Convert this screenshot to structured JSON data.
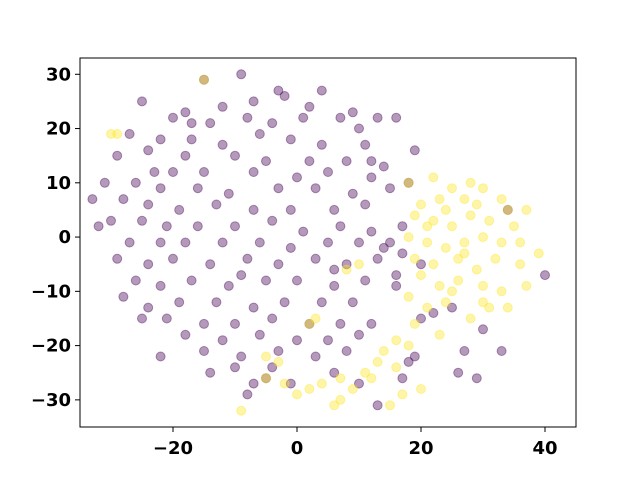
{
  "chart_data": {
    "type": "scatter",
    "title": "",
    "xlabel": "",
    "ylabel": "",
    "xlim": [
      -35,
      45
    ],
    "ylim": [
      -35,
      33
    ],
    "xticks": [
      -20,
      0,
      20,
      40
    ],
    "yticks": [
      -30,
      -20,
      -10,
      0,
      10,
      20,
      30
    ],
    "xtick_labels": [
      "−20",
      "0",
      "20",
      "40"
    ],
    "ytick_labels": [
      "−30",
      "−20",
      "−10",
      "0",
      "10",
      "20",
      "30"
    ],
    "grid": false,
    "legend": false,
    "marker_opacity": 0.4,
    "series": [
      {
        "color": "#440154",
        "points": [
          [
            -9,
            30
          ],
          [
            -15,
            29
          ],
          [
            -3,
            27
          ],
          [
            -2,
            26
          ],
          [
            4,
            27
          ],
          [
            -7,
            25
          ],
          [
            -25,
            25
          ],
          [
            -12,
            24
          ],
          [
            -18,
            23
          ],
          [
            -20,
            22
          ],
          [
            -14,
            21
          ],
          [
            -8,
            22
          ],
          [
            -4,
            21
          ],
          [
            1,
            22
          ],
          [
            7,
            22
          ],
          [
            9,
            23
          ],
          [
            13,
            22
          ],
          [
            16,
            22
          ],
          [
            10,
            20
          ],
          [
            -6,
            19
          ],
          [
            -27,
            19
          ],
          [
            -22,
            18
          ],
          [
            -17,
            18
          ],
          [
            -12,
            17
          ],
          [
            -1,
            18
          ],
          [
            4,
            17
          ],
          [
            11,
            17
          ],
          [
            -29,
            15
          ],
          [
            -24,
            16
          ],
          [
            -18,
            15
          ],
          [
            -10,
            15
          ],
          [
            -5,
            14
          ],
          [
            2,
            14
          ],
          [
            8,
            14
          ],
          [
            14,
            13
          ],
          [
            19,
            16
          ],
          [
            -20,
            12
          ],
          [
            -15,
            12
          ],
          [
            -7,
            12
          ],
          [
            0,
            11
          ],
          [
            5,
            12
          ],
          [
            12,
            11
          ],
          [
            -31,
            10
          ],
          [
            -26,
            10
          ],
          [
            -22,
            9
          ],
          [
            -16,
            9
          ],
          [
            -11,
            8
          ],
          [
            -3,
            9
          ],
          [
            3,
            9
          ],
          [
            9,
            8
          ],
          [
            15,
            9
          ],
          [
            -28,
            7
          ],
          [
            -24,
            6
          ],
          [
            -19,
            5
          ],
          [
            -13,
            6
          ],
          [
            -7,
            5
          ],
          [
            -1,
            5
          ],
          [
            6,
            5
          ],
          [
            11,
            6
          ],
          [
            -33,
            7
          ],
          [
            -30,
            3
          ],
          [
            -25,
            3
          ],
          [
            -21,
            2
          ],
          [
            -16,
            2
          ],
          [
            -10,
            2
          ],
          [
            -4,
            3
          ],
          [
            1,
            1
          ],
          [
            7,
            2
          ],
          [
            12,
            1
          ],
          [
            17,
            2
          ],
          [
            -32,
            2
          ],
          [
            -27,
            -1
          ],
          [
            -22,
            -1
          ],
          [
            -18,
            -1
          ],
          [
            -12,
            -1
          ],
          [
            -6,
            -1
          ],
          [
            -1,
            -2
          ],
          [
            5,
            -1
          ],
          [
            10,
            -1
          ],
          [
            15,
            -1
          ],
          [
            -29,
            -4
          ],
          [
            -24,
            -5
          ],
          [
            -20,
            -4
          ],
          [
            -14,
            -5
          ],
          [
            -8,
            -4
          ],
          [
            -3,
            -5
          ],
          [
            3,
            -4
          ],
          [
            8,
            -5
          ],
          [
            13,
            -4
          ],
          [
            -26,
            -8
          ],
          [
            -22,
            -9
          ],
          [
            -17,
            -8
          ],
          [
            -11,
            -9
          ],
          [
            -5,
            -8
          ],
          [
            0,
            -8
          ],
          [
            6,
            -9
          ],
          [
            11,
            -8
          ],
          [
            16,
            -7
          ],
          [
            -28,
            -11
          ],
          [
            -24,
            -13
          ],
          [
            -19,
            -12
          ],
          [
            -13,
            -12
          ],
          [
            -7,
            -13
          ],
          [
            -2,
            -12
          ],
          [
            4,
            -12
          ],
          [
            9,
            -12
          ],
          [
            -21,
            -15
          ],
          [
            -15,
            -16
          ],
          [
            -10,
            -16
          ],
          [
            -4,
            -15
          ],
          [
            2,
            -16
          ],
          [
            7,
            -16
          ],
          [
            12,
            -16
          ],
          [
            -25,
            -15
          ],
          [
            -18,
            -18
          ],
          [
            -12,
            -19
          ],
          [
            -6,
            -18
          ],
          [
            0,
            -19
          ],
          [
            5,
            -19
          ],
          [
            10,
            -18
          ],
          [
            -22,
            -22
          ],
          [
            -15,
            -21
          ],
          [
            -9,
            -22
          ],
          [
            -3,
            -21
          ],
          [
            3,
            -22
          ],
          [
            8,
            -21
          ],
          [
            -10,
            -24
          ],
          [
            -5,
            -26
          ],
          [
            -7,
            -27
          ],
          [
            -4,
            -24
          ],
          [
            6,
            -25
          ],
          [
            10,
            -27
          ],
          [
            13,
            -31
          ],
          [
            17,
            -26
          ],
          [
            19,
            -22
          ],
          [
            20,
            -15
          ],
          [
            22,
            -14
          ],
          [
            25,
            -13
          ],
          [
            27,
            -21
          ],
          [
            26,
            -25
          ],
          [
            29,
            -26
          ],
          [
            33,
            -21
          ],
          [
            30,
            -17
          ],
          [
            34,
            5
          ],
          [
            40,
            -7
          ],
          [
            18,
            -23
          ],
          [
            -8,
            -29
          ],
          [
            16,
            -9
          ],
          [
            17,
            -3
          ],
          [
            18,
            10
          ],
          [
            14,
            -2
          ],
          [
            6,
            -6
          ],
          [
            -9,
            -7
          ],
          [
            -23,
            12
          ],
          [
            -17,
            21
          ],
          [
            2,
            24
          ],
          [
            12,
            14
          ],
          [
            -1,
            -27
          ],
          [
            -14,
            -25
          ],
          [
            20,
            -5
          ]
        ]
      },
      {
        "color": "#fde725",
        "points": [
          [
            -15,
            29
          ],
          [
            -30,
            19
          ],
          [
            -29,
            19
          ],
          [
            18,
            10
          ],
          [
            22,
            11
          ],
          [
            25,
            9
          ],
          [
            28,
            10
          ],
          [
            30,
            9
          ],
          [
            27,
            7
          ],
          [
            29,
            6
          ],
          [
            23,
            7
          ],
          [
            20,
            6
          ],
          [
            19,
            4
          ],
          [
            22,
            3
          ],
          [
            25,
            2
          ],
          [
            28,
            4
          ],
          [
            31,
            3
          ],
          [
            34,
            5
          ],
          [
            37,
            5
          ],
          [
            35,
            2
          ],
          [
            18,
            0
          ],
          [
            21,
            -1
          ],
          [
            24,
            -2
          ],
          [
            27,
            -1
          ],
          [
            30,
            0
          ],
          [
            33,
            -1
          ],
          [
            36,
            -1
          ],
          [
            19,
            -4
          ],
          [
            22,
            -5
          ],
          [
            26,
            -4
          ],
          [
            29,
            -6
          ],
          [
            32,
            -4
          ],
          [
            36,
            -5
          ],
          [
            39,
            -3
          ],
          [
            20,
            -7
          ],
          [
            23,
            -9
          ],
          [
            26,
            -8
          ],
          [
            30,
            -9
          ],
          [
            33,
            -10
          ],
          [
            37,
            -9
          ],
          [
            18,
            -11
          ],
          [
            21,
            -13
          ],
          [
            24,
            -12
          ],
          [
            28,
            -15
          ],
          [
            31,
            -13
          ],
          [
            34,
            -13
          ],
          [
            19,
            -16
          ],
          [
            23,
            -18
          ],
          [
            16,
            -19
          ],
          [
            14,
            -21
          ],
          [
            13,
            -23
          ],
          [
            11,
            -25
          ],
          [
            9,
            -28
          ],
          [
            7,
            -30
          ],
          [
            6,
            -31
          ],
          [
            4,
            -27
          ],
          [
            2,
            -28
          ],
          [
            0,
            -29
          ],
          [
            -2,
            -27
          ],
          [
            -5,
            -26
          ],
          [
            -5,
            -22
          ],
          [
            -3,
            -23
          ],
          [
            2,
            -16
          ],
          [
            3,
            -15
          ],
          [
            8,
            -6
          ],
          [
            10,
            -5
          ],
          [
            17,
            -29
          ],
          [
            20,
            -28
          ],
          [
            15,
            -31
          ],
          [
            -9,
            -32
          ],
          [
            7,
            -26
          ],
          [
            12,
            -26
          ],
          [
            16,
            -24
          ],
          [
            18,
            -20
          ],
          [
            33,
            7
          ],
          [
            24,
            5
          ],
          [
            21,
            2
          ],
          [
            27,
            -3
          ],
          [
            30,
            -12
          ],
          [
            25,
            -10
          ]
        ]
      }
    ]
  }
}
